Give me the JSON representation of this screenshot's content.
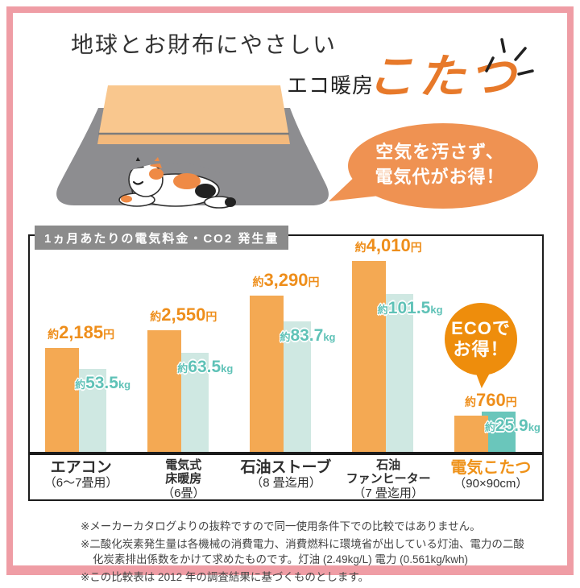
{
  "frame": {
    "border_color": "#ef9da5"
  },
  "header": {
    "title": "地球とお財布にやさしい",
    "subtitle_prefix": "エコ暖房",
    "subtitle_main": "こたつ",
    "accent_color": "#e7792a"
  },
  "speech_bubble": {
    "line1": "空気を汚さず、",
    "line2": "電気代がお得！",
    "color": "#ef9252"
  },
  "eco_badge": {
    "line1": "ECOで",
    "line2": "お得！",
    "color": "#ee8d0c"
  },
  "units": {
    "approx": "約",
    "yen": "円",
    "kg": "kg"
  },
  "chart_data": {
    "type": "bar",
    "title": "1ヵ月あたりの電気料金・CO2 発生量",
    "legend_position": "none",
    "grid": false,
    "categories": [
      "エアコン（6～7畳用）",
      "電気式床暖房（6畳）",
      "石油ストーブ（8 畳迄用）",
      "石油ファンヒーター（7 畳迄用）",
      "電気こたつ（90×90cm）"
    ],
    "series": [
      {
        "name": "電気料金（円／月）",
        "values": [
          2185,
          2550,
          3290,
          4010,
          760
        ],
        "color": "#f4a953",
        "max": 4010
      },
      {
        "name": "CO2発生量（kg／月）",
        "values": [
          53.5,
          63.5,
          83.7,
          101.5,
          25.9
        ],
        "color": "#cfe8e2",
        "highlight_color": "#6ac6bb",
        "max": 101.5
      }
    ],
    "groups": [
      {
        "name_lines": [
          "エアコン"
        ],
        "sub": "（6～7畳用）",
        "yen": "2,185",
        "kg": "53.5",
        "highlight": false
      },
      {
        "name_lines": [
          "電気式",
          "床暖房"
        ],
        "sub": "（6畳）",
        "yen": "2,550",
        "kg": "63.5",
        "highlight": false
      },
      {
        "name_lines": [
          "石油ストーブ"
        ],
        "sub": "（8 畳迄用）",
        "yen": "3,290",
        "kg": "83.7",
        "highlight": false
      },
      {
        "name_lines": [
          "石油",
          "ファンヒーター"
        ],
        "sub": "（7 畳迄用）",
        "yen": "4,010",
        "kg": "101.5",
        "highlight": false
      },
      {
        "name_lines": [
          "電気こたつ"
        ],
        "sub": "（90×90cm）",
        "yen": "760",
        "kg": "25.9",
        "highlight": true
      }
    ]
  },
  "chart": {
    "header": "1ヵ月あたりの電気料金・CO2 発生量"
  },
  "footnotes": [
    "※メーカーカタログよりの抜粋ですので同一使用条件下での比較ではありません。",
    "※二酸化炭素発生量は各機械の消費電力、消費燃料に環境省が出している灯油、電力の二酸化炭素排出係数をかけて求めたものです。灯油 (2.49kg/L) 電力 (0.561kg/kwh)",
    "※この比較表は 2012 年の調査結果に基づくものとします。"
  ]
}
